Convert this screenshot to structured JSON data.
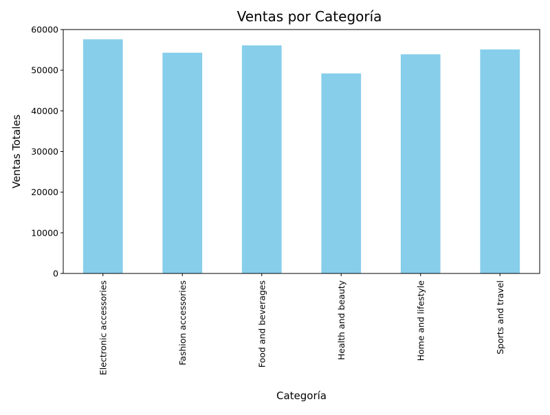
{
  "chart_data": {
    "type": "bar",
    "title": "Ventas por Categoría",
    "xlabel": "Categoría",
    "ylabel": "Ventas Totales",
    "categories": [
      "Electronic accessories",
      "Fashion accessories",
      "Food and beverages",
      "Health and beauty",
      "Home and lifestyle",
      "Sports and travel"
    ],
    "values": [
      57600,
      54300,
      56100,
      49200,
      53900,
      55100
    ],
    "ylim": [
      0,
      60000
    ],
    "yticks": [
      0,
      10000,
      20000,
      30000,
      40000,
      50000,
      60000
    ],
    "ytick_labels": [
      "0",
      "10000",
      "20000",
      "30000",
      "40000",
      "50000",
      "60000"
    ],
    "bar_color": "#87CEEB",
    "grid": false,
    "legend": "none"
  }
}
